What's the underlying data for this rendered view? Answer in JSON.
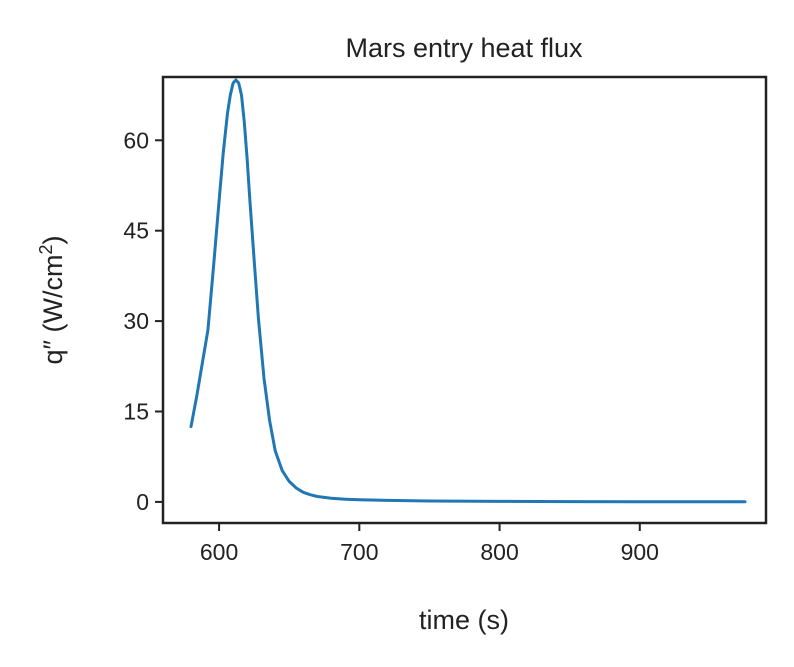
{
  "chart_data": {
    "type": "line",
    "title": "Mars entry heat flux",
    "xlabel": "time (s)",
    "ylabel_main": "q″ (W/cm",
    "ylabel_sup": "2",
    "ylabel_end": ")",
    "xlim": [
      560,
      990
    ],
    "ylim": [
      -3.5,
      70.5
    ],
    "xticks": [
      600,
      700,
      800,
      900
    ],
    "yticks": [
      0,
      15,
      30,
      45,
      60
    ],
    "grid": false,
    "series": [
      {
        "color": "#1f77b4",
        "x": [
          580,
          584,
          588,
          592,
          596,
          600,
          603,
          606,
          608,
          610,
          612,
          614,
          616,
          618,
          620,
          622,
          625,
          628,
          632,
          636,
          640,
          645,
          650,
          655,
          660,
          665,
          670,
          680,
          690,
          700,
          720,
          750,
          800,
          850,
          900,
          950,
          975
        ],
        "y": [
          12.5,
          17.5,
          23,
          28.5,
          39,
          50,
          58,
          64.5,
          67.5,
          69.5,
          70,
          69.5,
          67.5,
          63,
          57,
          50,
          40,
          30.5,
          20.5,
          13.5,
          8.5,
          5.2,
          3.4,
          2.3,
          1.6,
          1.2,
          0.9,
          0.6,
          0.45,
          0.35,
          0.25,
          0.15,
          0.08,
          0.05,
          0.03,
          0.02,
          0.02
        ]
      }
    ]
  }
}
